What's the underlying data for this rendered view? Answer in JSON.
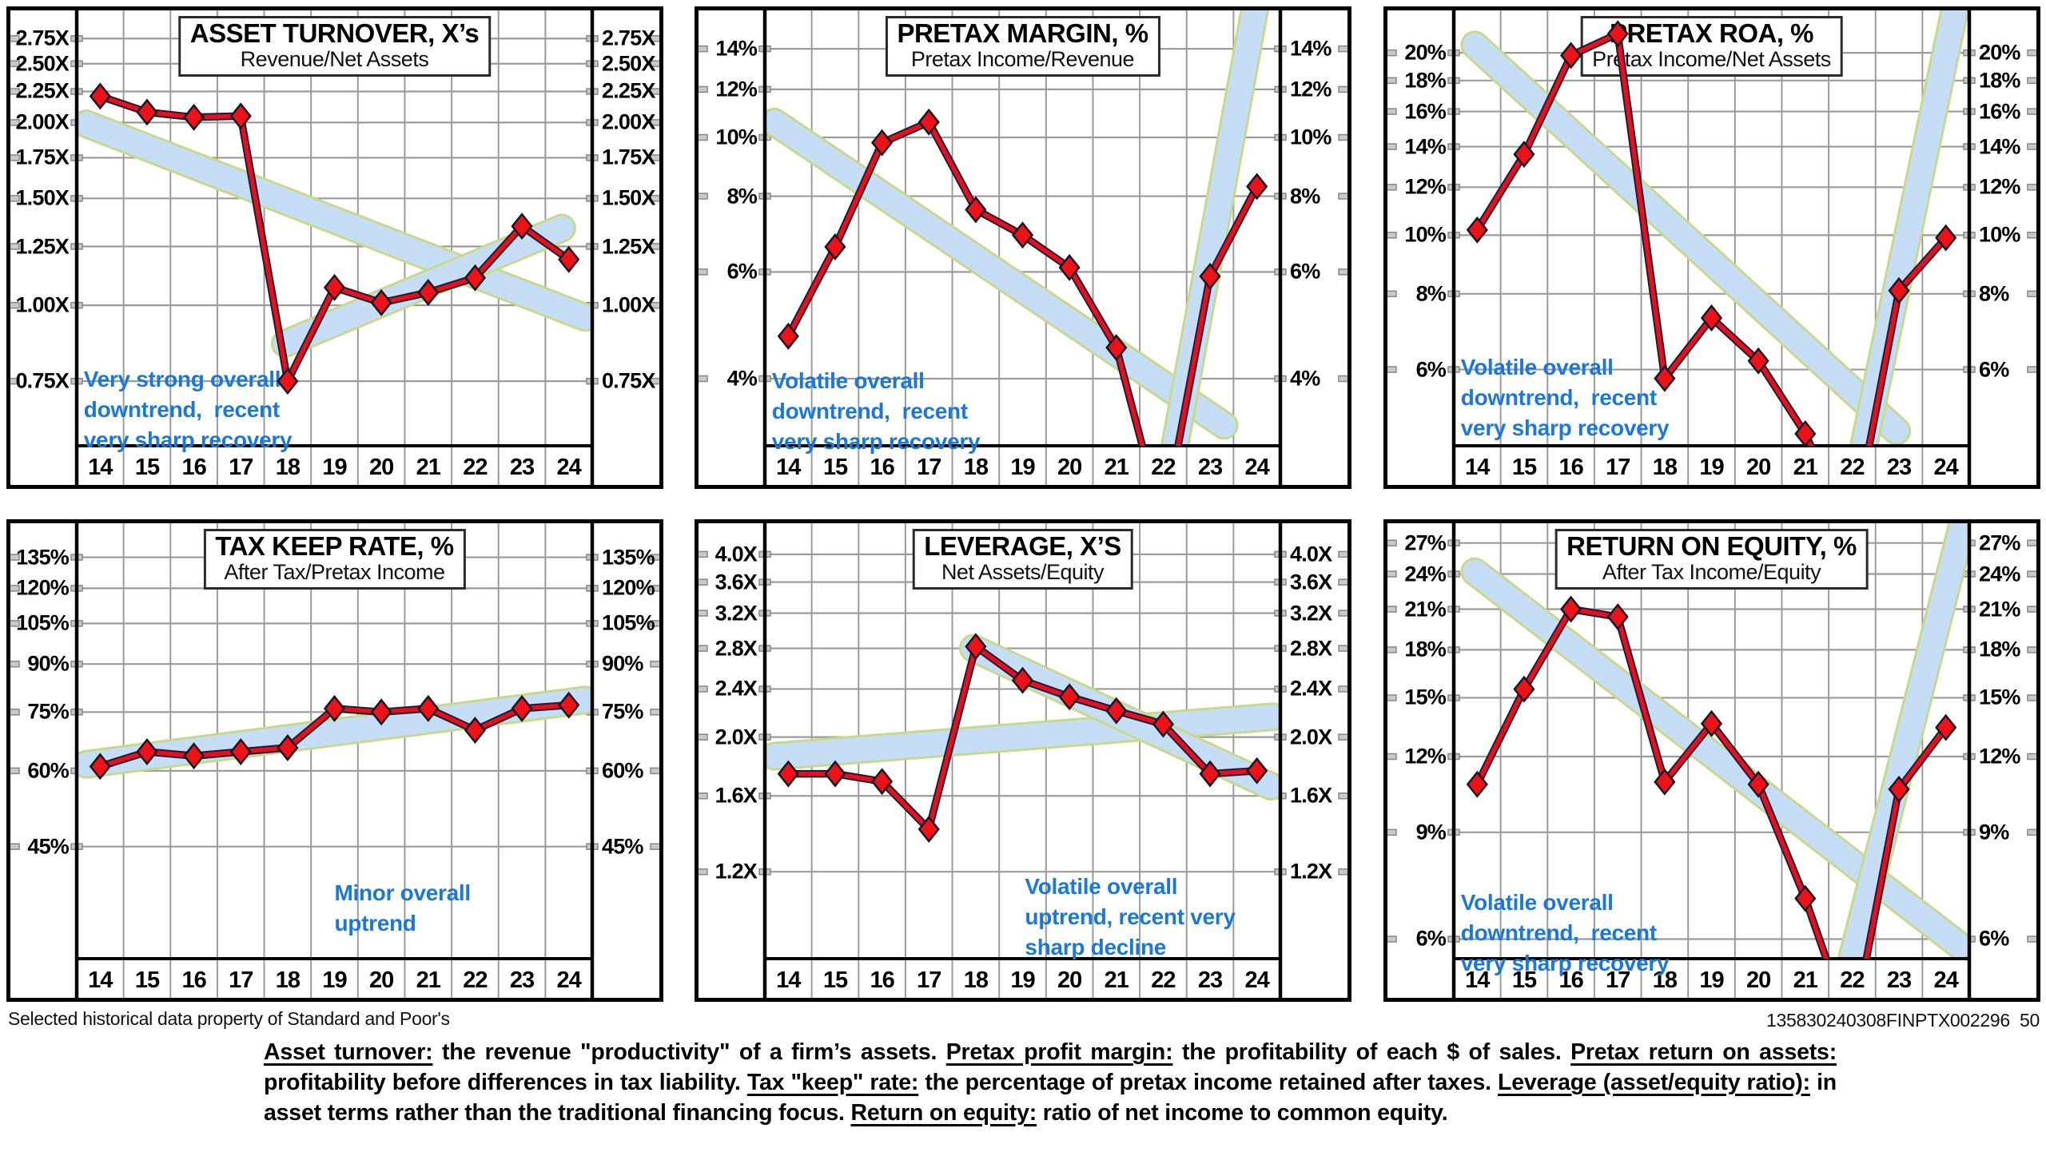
{
  "page": {
    "footer_left": "Selected historical data property of Standard and Poor's",
    "footer_right": "135830240308FINPTX002296  50"
  },
  "colors": {
    "band_fill": "#c5def5",
    "band_edge": "#c9d98b",
    "series_line": "#e80f1d",
    "series_line_edge": "#1c1c38",
    "marker_fill": "#ee1118",
    "marker_edge": "#161626",
    "grid": "#9b9b9b",
    "axis": "#000000",
    "tick_nub_fill": "#c9c9c9",
    "tick_nub_edge": "#878787",
    "annotation_blue": "#1b78d8",
    "title_text": "#000000"
  },
  "years": [
    "14",
    "15",
    "16",
    "17",
    "18",
    "19",
    "20",
    "21",
    "22",
    "23",
    "24"
  ],
  "chart_data": [
    {
      "id": "asset-turnover",
      "type": "line",
      "title": "ASSET TURNOVER, X’s",
      "subtitle": "Revenue/Net Assets",
      "ytick_labels": [
        "2.75X",
        "2.50X",
        "2.25X",
        "2.00X",
        "1.75X",
        "1.50X",
        "1.25X",
        "1.00X",
        "0.75X"
      ],
      "ytick_values": [
        2.75,
        2.5,
        2.25,
        2.0,
        1.75,
        1.5,
        1.25,
        1.0,
        0.75
      ],
      "ylim": [
        0.587,
        3.06
      ],
      "log_scale": true,
      "values": [
        2.21,
        2.08,
        2.04,
        2.05,
        0.75,
        1.07,
        1.01,
        1.05,
        1.11,
        1.35,
        1.19
      ],
      "offscale_low_years": [],
      "trend_bands": [
        {
          "from_year": 13.7,
          "from_value": 1.99,
          "to_year": 24.35,
          "to_value": 0.955
        },
        {
          "from_year": 17.95,
          "from_value": 0.865,
          "to_year": 23.85,
          "to_value": 1.34
        }
      ],
      "annotation": {
        "lines": [
          "Very strong overall",
          "downtrend,  recent",
          "very sharp recovery"
        ],
        "anchor_year": 13.65,
        "anchor_value": 0.8
      }
    },
    {
      "id": "pretax-margin",
      "type": "line",
      "title": "PRETAX MARGIN, %",
      "subtitle": "Pretax Income/Revenue",
      "ytick_labels": [
        "14%",
        "12%",
        "10%",
        "8%",
        "6%",
        "4%"
      ],
      "ytick_values": [
        14,
        12,
        10,
        8,
        6,
        4
      ],
      "ylim": [
        3.1,
        16.2
      ],
      "log_scale": true,
      "values": [
        4.7,
        6.6,
        9.8,
        10.6,
        7.6,
        6.9,
        6.1,
        4.5,
        2.3,
        5.9,
        8.3
      ],
      "offscale_low_years": [
        "22"
      ],
      "trend_bands": [
        {
          "from_year": 13.7,
          "from_value": 10.6,
          "to_year": 23.3,
          "to_value": 3.35
        },
        {
          "from_year": 22.25,
          "from_value": 3.1,
          "to_year": 24.0,
          "to_value": 17.0
        }
      ],
      "annotation": {
        "lines": [
          "Volatile overall",
          "downtrend,  recent",
          "very sharp recovery"
        ],
        "anchor_year": 13.65,
        "anchor_value": 4.2
      }
    },
    {
      "id": "pretax-roa",
      "type": "line",
      "title": "PRETAX ROA, %",
      "subtitle": "Pretax Income/Net Assets",
      "ytick_labels": [
        "20%",
        "18%",
        "16%",
        "14%",
        "12%",
        "10%",
        "8%",
        "6%"
      ],
      "ytick_values": [
        20,
        18,
        16,
        14,
        12,
        10,
        8,
        6
      ],
      "ylim": [
        4.49,
        23.5
      ],
      "log_scale": true,
      "values": [
        10.2,
        13.6,
        19.8,
        21.5,
        5.8,
        7.3,
        6.2,
        4.7,
        3.2,
        8.1,
        9.9
      ],
      "offscale_low_years": [
        "22"
      ],
      "trend_bands": [
        {
          "from_year": 13.95,
          "from_value": 20.6,
          "to_year": 22.95,
          "to_value": 4.75
        },
        {
          "from_year": 22.2,
          "from_value": 4.3,
          "to_year": 24.35,
          "to_value": 27.0
        }
      ],
      "annotation": {
        "lines": [
          "Volatile overall",
          "downtrend,  recent",
          "very sharp recovery"
        ],
        "anchor_year": 13.65,
        "anchor_value": 6.4
      }
    },
    {
      "id": "tax-keep-rate",
      "type": "line",
      "title": "TAX KEEP RATE, %",
      "subtitle": "After Tax/Pretax Income",
      "ytick_labels": [
        "135%",
        "120%",
        "105%",
        "90%",
        "75%",
        "60%",
        "45%"
      ],
      "ytick_values": [
        135,
        120,
        105,
        90,
        75,
        60,
        45
      ],
      "ylim": [
        29.4,
        153.6
      ],
      "log_scale": true,
      "values": [
        61,
        64.5,
        63.5,
        64.5,
        65.5,
        76,
        75,
        76,
        70,
        76,
        77
      ],
      "offscale_low_years": [],
      "trend_bands": [
        {
          "from_year": 13.7,
          "from_value": 61.5,
          "to_year": 24.35,
          "to_value": 78.5
        }
      ],
      "annotation": {
        "lines": [
          "Minor overall",
          "uptrend"
        ],
        "anchor_year": 19.0,
        "anchor_value": 40
      }
    },
    {
      "id": "leverage",
      "type": "line",
      "title": "LEVERAGE, X’S",
      "subtitle": "Net Assets/Equity",
      "ytick_labels": [
        "4.0X",
        "3.6X",
        "3.2X",
        "2.8X",
        "2.4X",
        "2.0X",
        "1.6X",
        "1.2X"
      ],
      "ytick_values": [
        4.0,
        3.6,
        3.2,
        2.8,
        2.4,
        2.0,
        1.6,
        1.2
      ],
      "ylim": [
        0.863,
        4.5
      ],
      "log_scale": true,
      "values": [
        1.74,
        1.74,
        1.69,
        1.41,
        2.82,
        2.48,
        2.33,
        2.21,
        2.1,
        1.74,
        1.76
      ],
      "offscale_low_years": [],
      "trend_bands": [
        {
          "from_year": 13.7,
          "from_value": 1.86,
          "to_year": 24.35,
          "to_value": 2.16
        },
        {
          "from_year": 17.95,
          "from_value": 2.8,
          "to_year": 24.3,
          "to_value": 1.66
        }
      ],
      "annotation": {
        "lines": [
          "Volatile overall",
          "uptrend, recent very",
          "sharp decline"
        ],
        "anchor_year": 19.05,
        "anchor_value": 1.2
      }
    },
    {
      "id": "return-on-equity",
      "type": "line",
      "title": "RETURN ON EQUITY, %",
      "subtitle": "After Tax Income/Equity",
      "ytick_labels": [
        "27%",
        "24%",
        "21%",
        "18%",
        "15%",
        "12%",
        "9%",
        "6%"
      ],
      "ytick_values": [
        27,
        24,
        21,
        18,
        15,
        12,
        9,
        6
      ],
      "ylim": [
        5.57,
        29.1
      ],
      "log_scale": true,
      "values": [
        10.8,
        15.5,
        21.0,
        20.4,
        10.9,
        13.6,
        10.8,
        7.0,
        4.2,
        10.6,
        13.4
      ],
      "offscale_low_years": [
        "22"
      ],
      "trend_bands": [
        {
          "from_year": 13.95,
          "from_value": 24.2,
          "to_year": 24.3,
          "to_value": 5.85
        },
        {
          "from_year": 21.95,
          "from_value": 5.4,
          "to_year": 24.45,
          "to_value": 31.0
        }
      ],
      "annotation": {
        "lines": [
          "Volatile overall",
          "downtrend,  recent",
          "very sharp recovery"
        ],
        "anchor_year": 13.65,
        "anchor_value": 7.3
      }
    }
  ],
  "glossary": [
    {
      "term": "Asset turnover:",
      "definition": " the revenue \"productivity\" of a firm’s assets. "
    },
    {
      "term": "Pretax profit margin:",
      "definition": " the profitability of each $ of sales. "
    },
    {
      "term": "Pretax return on assets:",
      "definition": " profitability before differences in tax liability. "
    },
    {
      "term": "Tax \"keep\" rate:",
      "definition": " the percentage of pretax income retained after taxes. "
    },
    {
      "term": "Leverage (asset/equity ratio):",
      "definition": " in asset terms rather than the traditional financing focus. "
    },
    {
      "term": "Return on equity:",
      "definition": " ratio of net income to common equity."
    }
  ]
}
